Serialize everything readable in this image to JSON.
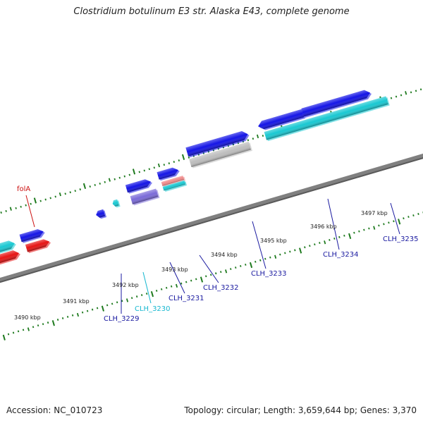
{
  "title": "Clostridium botulinum E3 str. Alaska E43, complete genome",
  "footer": {
    "accession": "Accession: NC_010723",
    "summary": "Topology: circular; Length: 3,659,644 bp; Genes: 3,370"
  },
  "colors": {
    "backbone": "#808080",
    "tick": "#1e7a1e",
    "gene_blue": "#1414e6",
    "gene_cyan": "#18c8d2",
    "gene_red": "#e61414",
    "gene_purple": "#7a6ad8",
    "gene_gray": "#bdbdbd",
    "gene_pink": "#f08a8a",
    "label_red": "#cc1010",
    "label_cyan": "#18b8d0",
    "label_navy": "#1a1aa0"
  },
  "axis_labels": [
    "3490 kbp",
    "3491 kbp",
    "3492 kbp",
    "3493 kbp",
    "3494 kbp",
    "3495 kbp",
    "3496 kbp",
    "3497 kbp"
  ],
  "gene_labels": [
    {
      "name": "folA",
      "color": "label_red"
    },
    {
      "name": "CLH_3229",
      "color": "label_navy"
    },
    {
      "name": "CLH_3230",
      "color": "label_cyan"
    },
    {
      "name": "CLH_3231",
      "color": "label_navy"
    },
    {
      "name": "CLH_3232",
      "color": "label_navy"
    },
    {
      "name": "CLH_3233",
      "color": "label_navy"
    },
    {
      "name": "CLH_3234",
      "color": "label_navy"
    },
    {
      "name": "CLH_3235",
      "color": "label_navy"
    }
  ]
}
